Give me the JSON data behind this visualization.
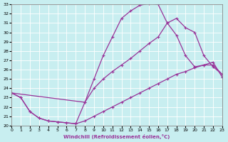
{
  "xlabel": "Windchill (Refroidissement éolien,°C)",
  "bg_color": "#c8eef0",
  "line_color": "#993399",
  "grid_color": "#ffffff",
  "xlim": [
    0,
    23
  ],
  "ylim": [
    20,
    33
  ],
  "xticks": [
    0,
    1,
    2,
    3,
    4,
    5,
    6,
    7,
    8,
    9,
    10,
    11,
    12,
    13,
    14,
    15,
    16,
    17,
    18,
    19,
    20,
    21,
    22,
    23
  ],
  "yticks": [
    20,
    21,
    22,
    23,
    24,
    25,
    26,
    27,
    28,
    29,
    30,
    31,
    32,
    33
  ],
  "line1_x": [
    0,
    1,
    2,
    3,
    4,
    5,
    6,
    7,
    8,
    9,
    10,
    11,
    12,
    13,
    14,
    15,
    16,
    17,
    18,
    19,
    20,
    21,
    22,
    23
  ],
  "line1_y": [
    23.5,
    23.0,
    21.5,
    20.8,
    20.5,
    20.4,
    20.3,
    20.2,
    22.5,
    25.0,
    27.5,
    29.5,
    31.5,
    32.3,
    32.9,
    33.1,
    33.0,
    31.0,
    29.7,
    27.5,
    26.3,
    26.5,
    26.5,
    25.5
  ],
  "line2_x": [
    0,
    8,
    9,
    10,
    11,
    12,
    13,
    14,
    15,
    16,
    17,
    18,
    19,
    20,
    21,
    22,
    23
  ],
  "line2_y": [
    23.5,
    22.5,
    24.0,
    25.0,
    25.8,
    26.5,
    27.2,
    28.0,
    28.8,
    29.5,
    31.0,
    31.5,
    30.5,
    30.0,
    27.5,
    26.3,
    25.5
  ],
  "line3_x": [
    0,
    1,
    2,
    3,
    4,
    5,
    6,
    7,
    8,
    9,
    10,
    11,
    12,
    13,
    14,
    15,
    16,
    17,
    18,
    19,
    20,
    21,
    22,
    23
  ],
  "line3_y": [
    23.5,
    23.0,
    21.5,
    20.8,
    20.5,
    20.4,
    20.3,
    20.2,
    20.5,
    21.0,
    21.5,
    22.0,
    22.5,
    23.0,
    23.5,
    24.0,
    24.5,
    25.0,
    25.5,
    25.8,
    26.2,
    26.5,
    26.8,
    25.2
  ]
}
